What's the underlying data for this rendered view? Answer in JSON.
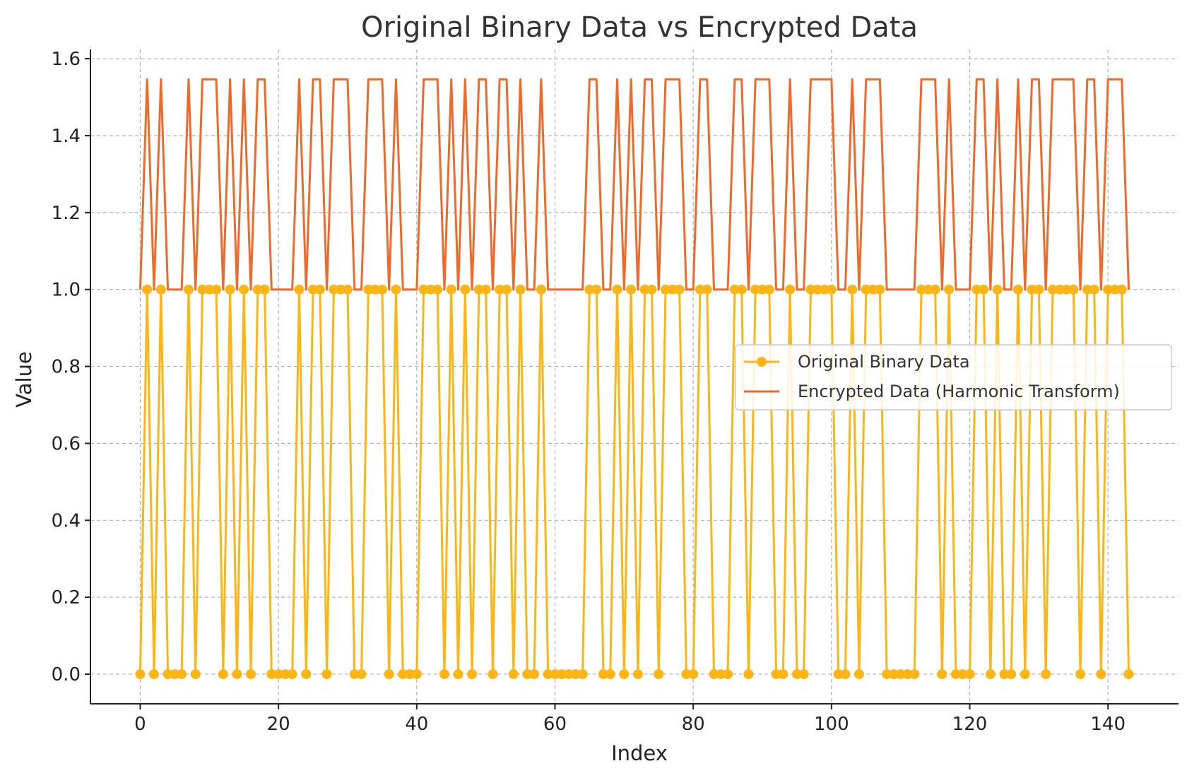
{
  "chart_data": {
    "type": "line",
    "title": "Original Binary Data vs Encrypted Data",
    "xlabel": "Index",
    "ylabel": "Value",
    "xlim": [
      -7.2,
      150.2
    ],
    "ylim": [
      -0.077,
      1.624
    ],
    "xticks": [
      0,
      20,
      40,
      60,
      80,
      100,
      120,
      140
    ],
    "yticks": [
      0.0,
      0.2,
      0.4,
      0.6,
      0.8,
      1.0,
      1.2,
      1.4,
      1.6
    ],
    "ytick_labels": [
      "0.0",
      "0.2",
      "0.4",
      "0.6",
      "0.8",
      "1.0",
      "1.2",
      "1.4",
      "1.6"
    ],
    "grid": true,
    "legend_position": "center-right",
    "x": "0..143",
    "series": [
      {
        "name": "Original Binary Data",
        "color": "#FDB515",
        "marker": "circle",
        "values": [
          0,
          1,
          0,
          1,
          0,
          0,
          0,
          1,
          0,
          1,
          1,
          1,
          0,
          1,
          0,
          1,
          0,
          1,
          1,
          0,
          0,
          0,
          0,
          1,
          0,
          1,
          1,
          0,
          1,
          1,
          1,
          0,
          0,
          1,
          1,
          1,
          0,
          1,
          0,
          0,
          0,
          1,
          1,
          1,
          0,
          1,
          0,
          1,
          0,
          1,
          1,
          0,
          1,
          1,
          0,
          1,
          0,
          0,
          1,
          0,
          0,
          0,
          0,
          0,
          0,
          1,
          1,
          0,
          0,
          1,
          0,
          1,
          0,
          1,
          1,
          0,
          1,
          1,
          1,
          0,
          0,
          1,
          1,
          0,
          0,
          0,
          1,
          1,
          0,
          1,
          1,
          1,
          0,
          0,
          1,
          0,
          0,
          1,
          1,
          1,
          1,
          0,
          0,
          1,
          0,
          1,
          1,
          1,
          0,
          0,
          0,
          0,
          0,
          1,
          1,
          1,
          0,
          1,
          0,
          0,
          0,
          1,
          1,
          0,
          1,
          0,
          0,
          1,
          0,
          1,
          1,
          0,
          1,
          1,
          1,
          1,
          0,
          1,
          1,
          0,
          1,
          1,
          1,
          0
        ]
      },
      {
        "name": "Encrypted Data (Harmonic Transform)",
        "color": "#EE6A2B",
        "marker": "none",
        "values": [
          1,
          1.5464,
          1,
          1.5464,
          1,
          1,
          1,
          1.5464,
          1,
          1.5464,
          1.5464,
          1.5464,
          1,
          1.5464,
          1,
          1.5464,
          1,
          1.5464,
          1.5464,
          1,
          1,
          1,
          1,
          1.5464,
          1,
          1.5464,
          1.5464,
          1,
          1.5464,
          1.5464,
          1.5464,
          1,
          1,
          1.5464,
          1.5464,
          1.5464,
          1,
          1.5464,
          1,
          1,
          1,
          1.5464,
          1.5464,
          1.5464,
          1,
          1.5464,
          1,
          1.5464,
          1,
          1.5464,
          1.5464,
          1,
          1.5464,
          1.5464,
          1,
          1.5464,
          1,
          1,
          1.5464,
          1,
          1,
          1,
          1,
          1,
          1,
          1.5464,
          1.5464,
          1,
          1,
          1.5464,
          1,
          1.5464,
          1,
          1.5464,
          1.5464,
          1,
          1.5464,
          1.5464,
          1.5464,
          1,
          1,
          1.5464,
          1.5464,
          1,
          1,
          1,
          1.5464,
          1.5464,
          1,
          1.5464,
          1.5464,
          1.5464,
          1,
          1,
          1.5464,
          1,
          1,
          1.5464,
          1.5464,
          1.5464,
          1.5464,
          1,
          1,
          1.5464,
          1,
          1.5464,
          1.5464,
          1.5464,
          1,
          1,
          1,
          1,
          1,
          1.5464,
          1.5464,
          1.5464,
          1,
          1.5464,
          1,
          1,
          1,
          1.5464,
          1.5464,
          1,
          1.5464,
          1,
          1,
          1.5464,
          1,
          1.5464,
          1.5464,
          1,
          1.5464,
          1.5464,
          1.5464,
          1.5464,
          1,
          1.5464,
          1.5464,
          1,
          1.5464,
          1.5464,
          1.5464,
          1
        ]
      }
    ]
  }
}
